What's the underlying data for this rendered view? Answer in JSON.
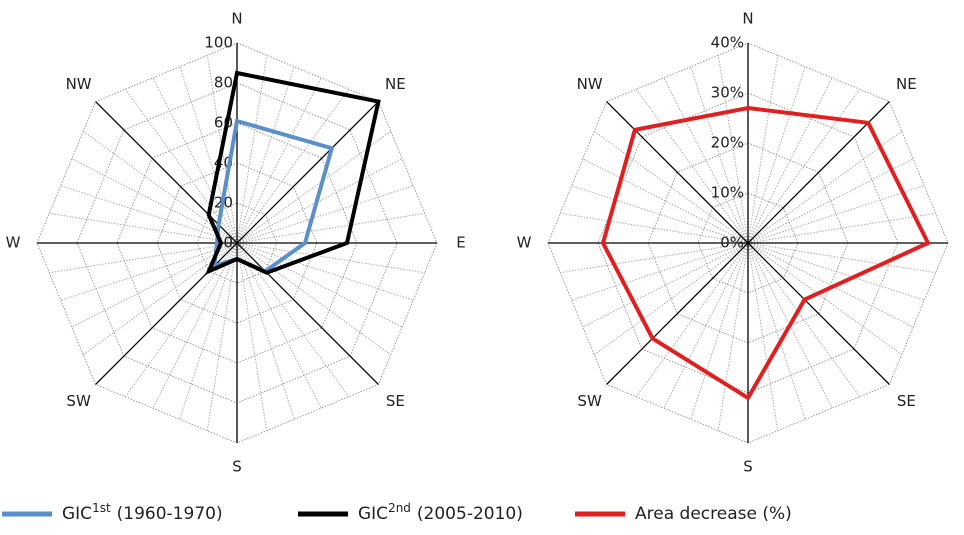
{
  "chart_data": [
    {
      "type": "radar",
      "categories": [
        "N",
        "NE",
        "E",
        "SE",
        "S",
        "SW",
        "W",
        "NW"
      ],
      "rlim": [
        0,
        100
      ],
      "rticks": [
        0,
        20,
        40,
        60,
        80,
        100
      ],
      "series": [
        {
          "name": "GIC",
          "name_sup": "1st",
          "name_suffix": "(1960-1970)",
          "color": "#5b8fc9",
          "values": [
            61,
            67,
            34,
            20,
            8,
            16,
            10,
            13
          ]
        },
        {
          "name": "GIC",
          "name_sup": "2nd",
          "name_suffix": "(2005-2010)",
          "color": "#000000",
          "values": [
            85,
            100,
            55,
            21,
            8,
            20,
            8,
            20
          ]
        }
      ]
    },
    {
      "type": "radar",
      "categories": [
        "N",
        "NE",
        "E",
        "SE",
        "S",
        "SW",
        "W",
        "NW"
      ],
      "rlim": [
        0,
        40
      ],
      "rticks": [
        {
          "value": 0,
          "label": "0%"
        },
        {
          "value": 10,
          "label": "10%"
        },
        {
          "value": 20,
          "label": "20%"
        },
        {
          "value": 30,
          "label": "30%"
        },
        {
          "value": 40,
          "label": "40%"
        }
      ],
      "series": [
        {
          "name": "Area decrease (%)",
          "color": "#e02020",
          "values": [
            27,
            34,
            36,
            16,
            31,
            27,
            29,
            32
          ]
        }
      ]
    }
  ]
}
